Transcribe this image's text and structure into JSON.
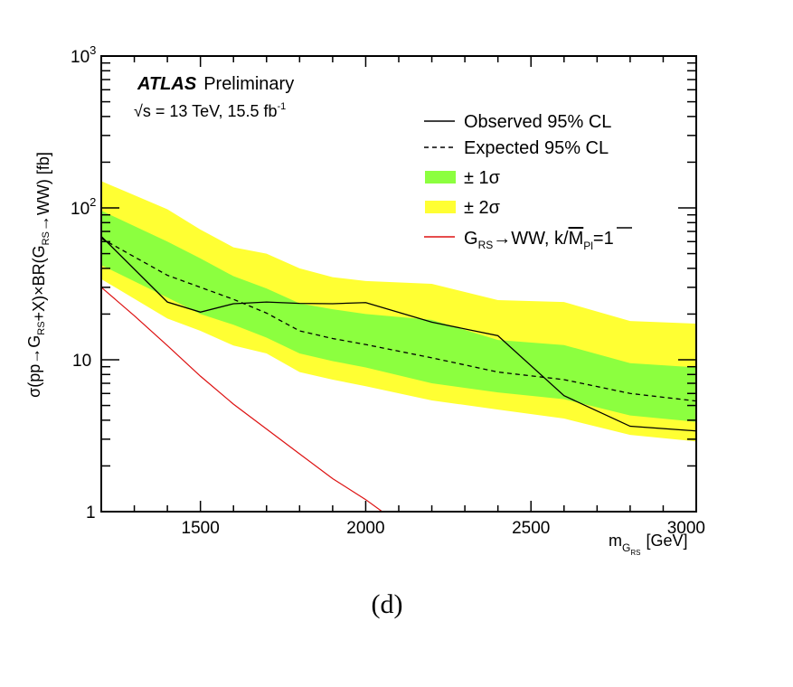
{
  "chart_data": {
    "type": "line",
    "title": "",
    "caption": "(d)",
    "xlabel": {
      "main": "m",
      "sub1": "G",
      "sub2": "RS",
      "unit": "[GeV]"
    },
    "ylabel": {
      "parts": [
        {
          "t": "σ(pp→G",
          "s": ""
        },
        {
          "t": "",
          "s": "RS"
        },
        {
          "t": "+X)×BR(G",
          "s": ""
        },
        {
          "t": "",
          "s": "RS"
        },
        {
          "t": "→WW) [fb]",
          "s": ""
        }
      ]
    },
    "xlim": [
      1200,
      3000
    ],
    "ylim": [
      1,
      1000
    ],
    "yscale": "log",
    "x_ticks": [
      1500,
      2000,
      2500,
      3000
    ],
    "x_tick_labels": [
      "1500",
      "2000",
      "2500",
      "3000"
    ],
    "y_ticks": [
      1,
      10,
      100,
      1000
    ],
    "y_tick_labels": [
      {
        "base": "1",
        "exp": ""
      },
      {
        "base": "10",
        "exp": ""
      },
      {
        "base": "10",
        "exp": "2"
      },
      {
        "base": "10",
        "exp": "3"
      }
    ],
    "annotations": {
      "experiment": "ATLAS",
      "status": "Preliminary",
      "energy_prefix": "√s = 13 TeV, 15.5 fb",
      "energy_exp": "-1"
    },
    "legend": {
      "position": "top-right",
      "entries": [
        {
          "label": "Observed 95% CL",
          "style": "solid",
          "color": "#000000"
        },
        {
          "label": "Expected 95% CL",
          "style": "dashed",
          "color": "#000000"
        },
        {
          "label": "± 1σ",
          "style": "fill",
          "color": "#8cff3f"
        },
        {
          "label": "± 2σ",
          "style": "fill",
          "color": "#ffff33"
        },
        {
          "label_parts": [
            "G",
            "RS",
            "→WW, k/",
            "M",
            "Pl",
            "=1"
          ],
          "style": "solid",
          "color": "#dd1111"
        }
      ]
    },
    "x": [
      1200,
      1400,
      1500,
      1600,
      1700,
      1800,
      1900,
      2000,
      2200,
      2400,
      2600,
      2800,
      3000
    ],
    "series": [
      {
        "name": "Observed 95% CL",
        "values": [
          65,
          24,
          20.6,
          23.4,
          24,
          23.5,
          23.4,
          23.8,
          17.7,
          14.4,
          5.8,
          3.65,
          3.4
        ]
      },
      {
        "name": "Expected 95% CL",
        "values": [
          63,
          36,
          30,
          25,
          20.3,
          15.5,
          13.8,
          12.6,
          10.3,
          8.3,
          7.4,
          6.0,
          5.35
        ]
      },
      {
        "name": "+2σ",
        "values": [
          150,
          98,
          72,
          55,
          50,
          40,
          35,
          33,
          31.6,
          24.7,
          24,
          18,
          17.3
        ]
      },
      {
        "name": "+1σ",
        "values": [
          96,
          60,
          46.5,
          35.5,
          29.5,
          23.5,
          21.5,
          20,
          18.3,
          13.5,
          12.5,
          9.5,
          8.9
        ]
      },
      {
        "name": "-1σ",
        "values": [
          42,
          25.7,
          20,
          17,
          14,
          11,
          9.8,
          8.9,
          7,
          6.1,
          5.5,
          4.3,
          3.9
        ]
      },
      {
        "name": "-2σ",
        "values": [
          34,
          18.7,
          15.5,
          12.4,
          11,
          8.3,
          7.4,
          6.7,
          5.4,
          4.7,
          4.1,
          3.2,
          2.9
        ]
      }
    ],
    "theory": {
      "name": "G_RS→WW, k/M_Pl=1",
      "x": [
        1200,
        1300,
        1400,
        1500,
        1600,
        1700,
        1800,
        1900,
        2000,
        2050
      ],
      "values": [
        30,
        19.5,
        12.4,
        7.8,
        5.1,
        3.5,
        2.4,
        1.65,
        1.2,
        1.0
      ]
    },
    "colors": {
      "band1": "#8cff3f",
      "band2": "#ffff33",
      "theory": "#dd1111",
      "axis": "#000000"
    }
  }
}
